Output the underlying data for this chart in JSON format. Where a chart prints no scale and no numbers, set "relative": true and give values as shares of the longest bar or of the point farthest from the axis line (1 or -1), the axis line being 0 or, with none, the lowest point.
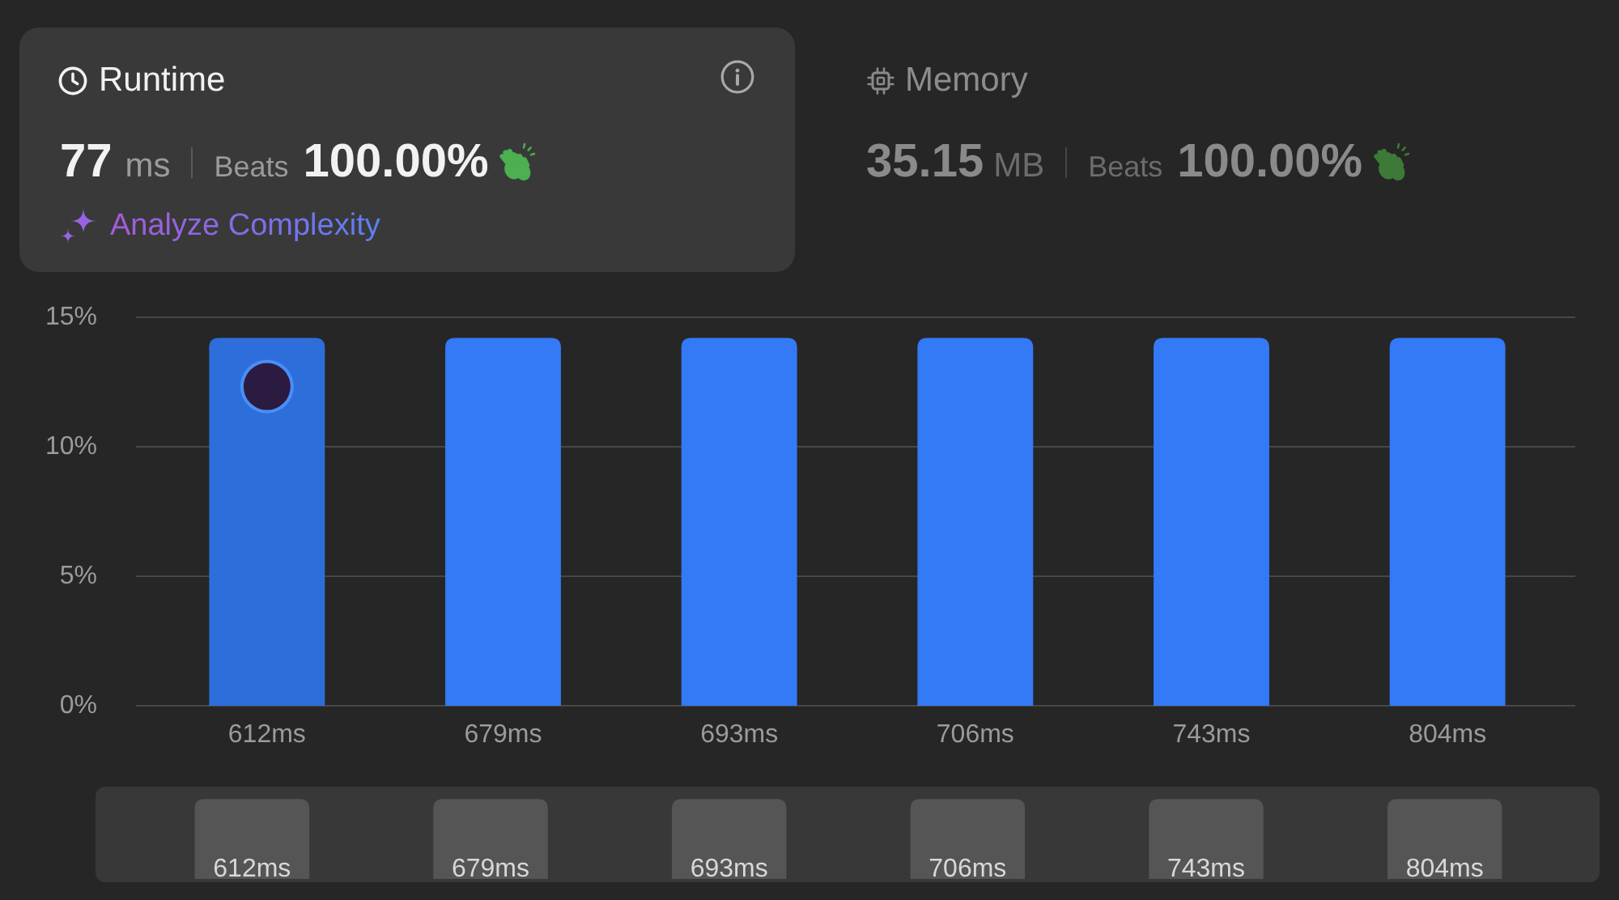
{
  "chart_data": [
    {
      "type": "bar",
      "title": "Runtime",
      "annotations": [
        "77",
        "ms",
        "Beats",
        "100.00%",
        "Analyze Complexity",
        "Memory",
        "35.15",
        "MB",
        "Beats",
        "100.00%"
      ],
      "categories": [
        "612ms",
        "679ms",
        "693ms",
        "706ms",
        "743ms",
        "804ms"
      ],
      "values": [
        14.2,
        14.2,
        14.2,
        14.2,
        14.2,
        14.2
      ],
      "colors": [
        "#2d6edb",
        "#3479f6",
        "#3479f6",
        "#3479f6",
        "#3479f6",
        "#3479f6"
      ],
      "ylim": [
        0,
        15
      ],
      "yticks": [
        {
          "value": 0,
          "label": "0%"
        },
        {
          "value": 5,
          "label": "5%"
        },
        {
          "value": 10,
          "label": "10%"
        },
        {
          "value": 15,
          "label": "15%"
        }
      ],
      "grid": "y"
    },
    {
      "type": "bar",
      "categories": [
        "612ms",
        "679ms",
        "693ms",
        "706ms",
        "743ms",
        "804ms"
      ],
      "values": [
        1,
        1,
        1,
        1,
        1,
        1
      ],
      "color": "#555555",
      "relative": true
    }
  ]
}
